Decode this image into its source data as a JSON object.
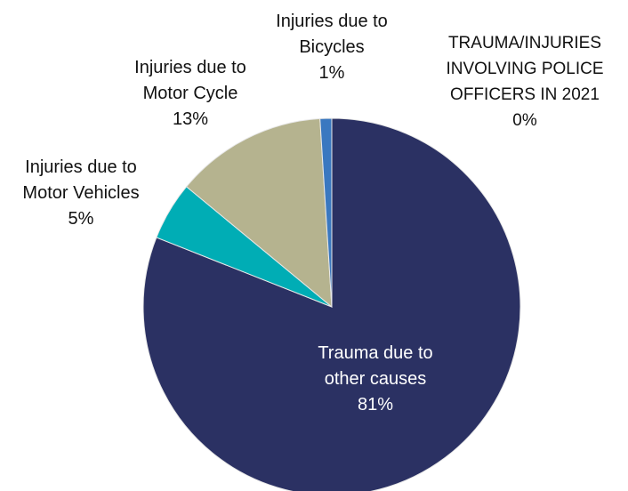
{
  "chart_data": {
    "type": "pie",
    "categories": [
      "Trauma due to other causes",
      "Injuries due to Motor Vehicles",
      "Injuries due to Motor Cycle",
      "Injuries due to Bicycles",
      "TRAUMA/INJURIES INVOLVING POLICE OFFICERS IN 2021"
    ],
    "values": [
      81,
      5,
      13,
      1,
      0
    ],
    "value_labels": [
      "81%",
      "5%",
      "13%",
      "1%",
      "0%"
    ],
    "colors": [
      "#2b3163",
      "#00adb5",
      "#b5b38f",
      "#3a78c0",
      "#7f7f7f"
    ]
  }
}
